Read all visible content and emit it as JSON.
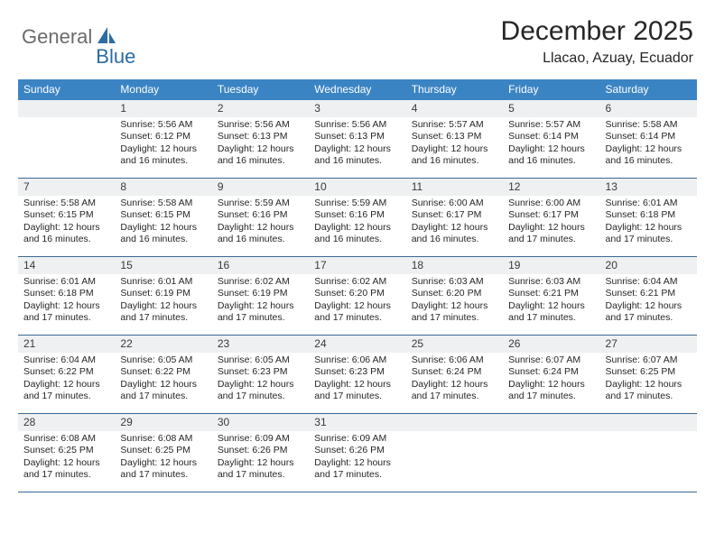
{
  "logo": {
    "part1": "General",
    "part2": "Blue"
  },
  "title": "December 2025",
  "location": "Llacao, Azuay, Ecuador",
  "colors": {
    "header_bg": "#3b84c4",
    "header_text": "#ffffff",
    "daynum_bg": "#eef0f1",
    "border": "#3b6a94",
    "logo_gray": "#6b6b6b",
    "logo_blue": "#2b6ca3",
    "text": "#262626"
  },
  "fonts": {
    "title_size": 30,
    "location_size": 16,
    "dayhead_size": 12,
    "daynum_size": 12,
    "body_size": 10.5
  },
  "day_headers": [
    "Sunday",
    "Monday",
    "Tuesday",
    "Wednesday",
    "Thursday",
    "Friday",
    "Saturday"
  ],
  "weeks": [
    [
      {
        "n": "",
        "sr": "",
        "ss": "",
        "dl": ""
      },
      {
        "n": "1",
        "sr": "Sunrise: 5:56 AM",
        "ss": "Sunset: 6:12 PM",
        "dl": "Daylight: 12 hours and 16 minutes."
      },
      {
        "n": "2",
        "sr": "Sunrise: 5:56 AM",
        "ss": "Sunset: 6:13 PM",
        "dl": "Daylight: 12 hours and 16 minutes."
      },
      {
        "n": "3",
        "sr": "Sunrise: 5:56 AM",
        "ss": "Sunset: 6:13 PM",
        "dl": "Daylight: 12 hours and 16 minutes."
      },
      {
        "n": "4",
        "sr": "Sunrise: 5:57 AM",
        "ss": "Sunset: 6:13 PM",
        "dl": "Daylight: 12 hours and 16 minutes."
      },
      {
        "n": "5",
        "sr": "Sunrise: 5:57 AM",
        "ss": "Sunset: 6:14 PM",
        "dl": "Daylight: 12 hours and 16 minutes."
      },
      {
        "n": "6",
        "sr": "Sunrise: 5:58 AM",
        "ss": "Sunset: 6:14 PM",
        "dl": "Daylight: 12 hours and 16 minutes."
      }
    ],
    [
      {
        "n": "7",
        "sr": "Sunrise: 5:58 AM",
        "ss": "Sunset: 6:15 PM",
        "dl": "Daylight: 12 hours and 16 minutes."
      },
      {
        "n": "8",
        "sr": "Sunrise: 5:58 AM",
        "ss": "Sunset: 6:15 PM",
        "dl": "Daylight: 12 hours and 16 minutes."
      },
      {
        "n": "9",
        "sr": "Sunrise: 5:59 AM",
        "ss": "Sunset: 6:16 PM",
        "dl": "Daylight: 12 hours and 16 minutes."
      },
      {
        "n": "10",
        "sr": "Sunrise: 5:59 AM",
        "ss": "Sunset: 6:16 PM",
        "dl": "Daylight: 12 hours and 16 minutes."
      },
      {
        "n": "11",
        "sr": "Sunrise: 6:00 AM",
        "ss": "Sunset: 6:17 PM",
        "dl": "Daylight: 12 hours and 16 minutes."
      },
      {
        "n": "12",
        "sr": "Sunrise: 6:00 AM",
        "ss": "Sunset: 6:17 PM",
        "dl": "Daylight: 12 hours and 17 minutes."
      },
      {
        "n": "13",
        "sr": "Sunrise: 6:01 AM",
        "ss": "Sunset: 6:18 PM",
        "dl": "Daylight: 12 hours and 17 minutes."
      }
    ],
    [
      {
        "n": "14",
        "sr": "Sunrise: 6:01 AM",
        "ss": "Sunset: 6:18 PM",
        "dl": "Daylight: 12 hours and 17 minutes."
      },
      {
        "n": "15",
        "sr": "Sunrise: 6:01 AM",
        "ss": "Sunset: 6:19 PM",
        "dl": "Daylight: 12 hours and 17 minutes."
      },
      {
        "n": "16",
        "sr": "Sunrise: 6:02 AM",
        "ss": "Sunset: 6:19 PM",
        "dl": "Daylight: 12 hours and 17 minutes."
      },
      {
        "n": "17",
        "sr": "Sunrise: 6:02 AM",
        "ss": "Sunset: 6:20 PM",
        "dl": "Daylight: 12 hours and 17 minutes."
      },
      {
        "n": "18",
        "sr": "Sunrise: 6:03 AM",
        "ss": "Sunset: 6:20 PM",
        "dl": "Daylight: 12 hours and 17 minutes."
      },
      {
        "n": "19",
        "sr": "Sunrise: 6:03 AM",
        "ss": "Sunset: 6:21 PM",
        "dl": "Daylight: 12 hours and 17 minutes."
      },
      {
        "n": "20",
        "sr": "Sunrise: 6:04 AM",
        "ss": "Sunset: 6:21 PM",
        "dl": "Daylight: 12 hours and 17 minutes."
      }
    ],
    [
      {
        "n": "21",
        "sr": "Sunrise: 6:04 AM",
        "ss": "Sunset: 6:22 PM",
        "dl": "Daylight: 12 hours and 17 minutes."
      },
      {
        "n": "22",
        "sr": "Sunrise: 6:05 AM",
        "ss": "Sunset: 6:22 PM",
        "dl": "Daylight: 12 hours and 17 minutes."
      },
      {
        "n": "23",
        "sr": "Sunrise: 6:05 AM",
        "ss": "Sunset: 6:23 PM",
        "dl": "Daylight: 12 hours and 17 minutes."
      },
      {
        "n": "24",
        "sr": "Sunrise: 6:06 AM",
        "ss": "Sunset: 6:23 PM",
        "dl": "Daylight: 12 hours and 17 minutes."
      },
      {
        "n": "25",
        "sr": "Sunrise: 6:06 AM",
        "ss": "Sunset: 6:24 PM",
        "dl": "Daylight: 12 hours and 17 minutes."
      },
      {
        "n": "26",
        "sr": "Sunrise: 6:07 AM",
        "ss": "Sunset: 6:24 PM",
        "dl": "Daylight: 12 hours and 17 minutes."
      },
      {
        "n": "27",
        "sr": "Sunrise: 6:07 AM",
        "ss": "Sunset: 6:25 PM",
        "dl": "Daylight: 12 hours and 17 minutes."
      }
    ],
    [
      {
        "n": "28",
        "sr": "Sunrise: 6:08 AM",
        "ss": "Sunset: 6:25 PM",
        "dl": "Daylight: 12 hours and 17 minutes."
      },
      {
        "n": "29",
        "sr": "Sunrise: 6:08 AM",
        "ss": "Sunset: 6:25 PM",
        "dl": "Daylight: 12 hours and 17 minutes."
      },
      {
        "n": "30",
        "sr": "Sunrise: 6:09 AM",
        "ss": "Sunset: 6:26 PM",
        "dl": "Daylight: 12 hours and 17 minutes."
      },
      {
        "n": "31",
        "sr": "Sunrise: 6:09 AM",
        "ss": "Sunset: 6:26 PM",
        "dl": "Daylight: 12 hours and 17 minutes."
      },
      {
        "n": "",
        "sr": "",
        "ss": "",
        "dl": ""
      },
      {
        "n": "",
        "sr": "",
        "ss": "",
        "dl": ""
      },
      {
        "n": "",
        "sr": "",
        "ss": "",
        "dl": ""
      }
    ]
  ]
}
